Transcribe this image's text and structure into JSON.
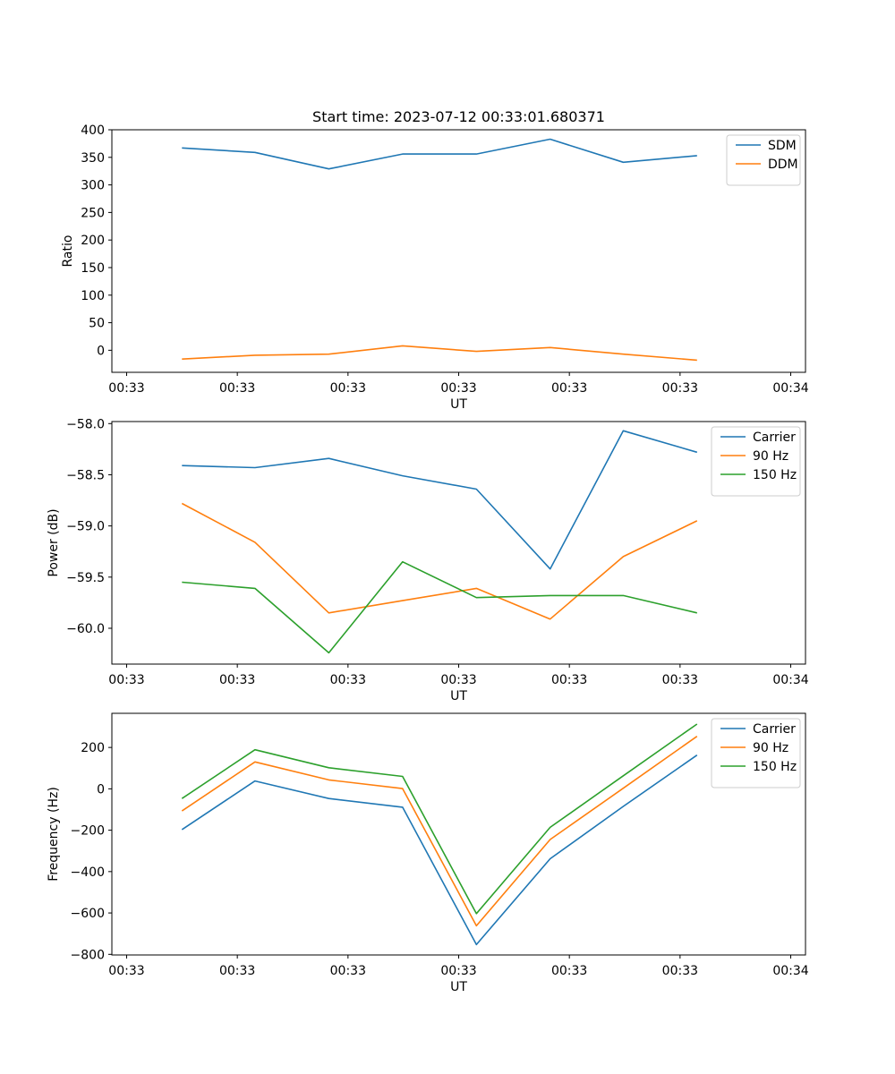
{
  "chart_data": [
    {
      "type": "line",
      "title": "Start time: 2023-07-12 00:33:01.680371",
      "xlabel": "UT",
      "ylabel": "Ratio",
      "xlim": [
        -0.2,
        9.2
      ],
      "ylim": [
        -40,
        400
      ],
      "yticks": [
        0,
        50,
        100,
        150,
        200,
        250,
        300,
        350,
        400
      ],
      "xticks": [
        0,
        1.5,
        3,
        4.5,
        6,
        7.5,
        9
      ],
      "xtick_labels": [
        "00:33",
        "00:33",
        "00:33",
        "00:33",
        "00:33",
        "00:33",
        "00:34"
      ],
      "x": [
        0.75,
        1.74,
        2.74,
        3.74,
        4.74,
        5.74,
        6.73,
        7.73
      ],
      "legend_position": "top-right",
      "series": [
        {
          "name": "SDM",
          "color": "#1f77b4",
          "values": [
            367,
            359,
            329,
            356,
            356,
            383,
            341,
            353
          ]
        },
        {
          "name": "DDM",
          "color": "#ff7f0e",
          "values": [
            -16,
            -9,
            -7,
            8,
            -2,
            5,
            -7,
            -18
          ]
        }
      ]
    },
    {
      "type": "line",
      "title": "",
      "xlabel": "UT",
      "ylabel": "Power (dB)",
      "xlim": [
        -0.2,
        9.2
      ],
      "ylim": [
        -60.35,
        -57.98
      ],
      "yticks": [
        -60.0,
        -59.5,
        -59.0,
        -58.5,
        -58.0
      ],
      "ytick_labels": [
        "−60.0",
        "−59.5",
        "−59.0",
        "−58.5",
        "−58.0"
      ],
      "xticks": [
        0,
        1.5,
        3,
        4.5,
        6,
        7.5,
        9
      ],
      "xtick_labels": [
        "00:33",
        "00:33",
        "00:33",
        "00:33",
        "00:33",
        "00:33",
        "00:34"
      ],
      "x": [
        0.75,
        1.74,
        2.74,
        3.74,
        4.74,
        5.74,
        6.73,
        7.73
      ],
      "legend_position": "top-right",
      "series": [
        {
          "name": "Carrier",
          "color": "#1f77b4",
          "values": [
            -58.41,
            -58.43,
            -58.34,
            -58.51,
            -58.64,
            -59.42,
            -58.07,
            -58.28
          ]
        },
        {
          "name": "90 Hz",
          "color": "#ff7f0e",
          "values": [
            -58.78,
            -59.16,
            -59.85,
            -59.73,
            -59.61,
            -59.91,
            -59.3,
            -58.95
          ]
        },
        {
          "name": "150 Hz",
          "color": "#2ca02c",
          "values": [
            -59.55,
            -59.61,
            -60.24,
            -59.35,
            -59.7,
            -59.68,
            -59.68,
            -59.85
          ]
        }
      ]
    },
    {
      "type": "line",
      "title": "",
      "xlabel": "UT",
      "ylabel": "Frequency (Hz)",
      "xlim": [
        -0.2,
        9.2
      ],
      "ylim": [
        -803,
        365
      ],
      "yticks": [
        -800,
        -600,
        -400,
        -200,
        0,
        200
      ],
      "ytick_labels": [
        "−800",
        "−600",
        "−400",
        "−200",
        "0",
        "200"
      ],
      "xticks": [
        0,
        1.5,
        3,
        4.5,
        6,
        7.5,
        9
      ],
      "xtick_labels": [
        "00:33",
        "00:33",
        "00:33",
        "00:33",
        "00:33",
        "00:33",
        "00:34"
      ],
      "x": [
        0.75,
        1.74,
        2.74,
        3.74,
        4.74,
        5.74,
        6.73,
        7.73
      ],
      "legend_position": "top-right",
      "series": [
        {
          "name": "Carrier",
          "color": "#1f77b4",
          "values": [
            -197,
            38,
            -47,
            -89,
            -753,
            -338,
            -85,
            163
          ]
        },
        {
          "name": "90 Hz",
          "color": "#ff7f0e",
          "values": [
            -107,
            130,
            43,
            1,
            -662,
            -245,
            3,
            254
          ]
        },
        {
          "name": "150 Hz",
          "color": "#2ca02c",
          "values": [
            -47,
            189,
            102,
            60,
            -603,
            -186,
            63,
            313
          ]
        }
      ]
    }
  ]
}
